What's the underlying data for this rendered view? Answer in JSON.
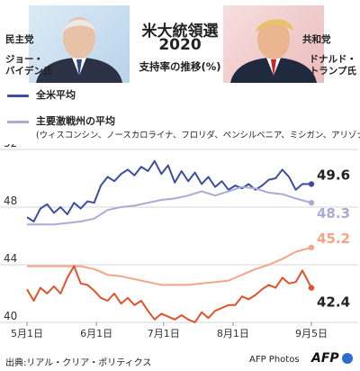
{
  "header": {
    "left_party": "民主党",
    "left_candidate": "ジョー・\nバイデン氏",
    "right_party": "共和党",
    "right_candidate": "ドナルド・\nトランプ氏",
    "title_line1": "米大統領選",
    "title_line2": "2020",
    "subtitle": "支持率の推移(%)"
  },
  "legend": {
    "national_label": "全米平均",
    "swing_label": "主要激戦州の平均",
    "swing_sub": "(ウィスコンシン、ノースカロライナ、フロリダ、ペンシルベニア、ミシガン、アリゾナ)"
  },
  "footer": {
    "source": "出典:リアル・クリア・ポリティクス",
    "credit": "AFP Photos",
    "logo": "AFP"
  },
  "colors": {
    "biden_national": "#3d4f9c",
    "biden_swing": "#a9abd6",
    "trump_national": "#e0522b",
    "trump_swing": "#f4a586",
    "grid": "#d6d6d6"
  },
  "chart_data": {
    "type": "line",
    "x_ticks": [
      "5月1日",
      "6月1日",
      "7月1日",
      "8月1日",
      "9月5日"
    ],
    "y_ticks": [
      "40",
      "44",
      "48",
      "52"
    ],
    "ylim": [
      40,
      52
    ],
    "grid": true,
    "end_labels": {
      "biden_national": "49.6",
      "biden_swing": "48.3",
      "trump_swing": "45.2",
      "trump_national": "42.4"
    },
    "series": [
      {
        "key": "biden_national",
        "name": "全米平均",
        "x": [
          "5月1日",
          "5月4日",
          "5月7日",
          "5月10日",
          "5月13日",
          "5月16日",
          "5月19日",
          "5月22日",
          "5月25日",
          "5月28日",
          "5月31日",
          "6月3日",
          "6月6日",
          "6月9日",
          "6月12日",
          "6月15日",
          "6月18日",
          "6月21日",
          "6月24日",
          "6月27日",
          "6月30日",
          "7月3日",
          "7月6日",
          "7月9日",
          "7月12日",
          "7月15日",
          "7月18日",
          "7月21日",
          "7月24日",
          "7月27日",
          "7月30日",
          "8月2日",
          "8月5日",
          "8月8日",
          "8月11日",
          "8月14日",
          "8月17日",
          "8月20日",
          "8月23日",
          "8月26日",
          "8月29日",
          "9月1日",
          "9月5日"
        ],
        "values": [
          47.3,
          47.0,
          47.9,
          48.2,
          47.6,
          48.0,
          47.5,
          48.3,
          47.9,
          48.4,
          48.3,
          49.5,
          50.1,
          49.8,
          50.3,
          50.6,
          50.2,
          50.8,
          50.5,
          51.2,
          50.3,
          50.9,
          49.7,
          50.5,
          49.8,
          50.4,
          49.6,
          50.1,
          49.4,
          49.8,
          49.2,
          49.5,
          49.3,
          49.6,
          49.2,
          49.5,
          49.9,
          50.0,
          50.6,
          50.1,
          49.2,
          49.6,
          49.6
        ]
      },
      {
        "key": "biden_swing",
        "name": "主要激戦州の平均",
        "x": [
          "5月1日",
          "5月7日",
          "5月13日",
          "5月19日",
          "5月25日",
          "5月31日",
          "6月6日",
          "6月12日",
          "6月18日",
          "6月24日",
          "6月30日",
          "7月6日",
          "7月12日",
          "7月18日",
          "7月24日",
          "7月30日",
          "8月5日",
          "8月11日",
          "8月17日",
          "8月23日",
          "8月29日",
          "9月5日"
        ],
        "values": [
          46.8,
          46.8,
          46.8,
          46.9,
          47.0,
          47.2,
          47.8,
          48.0,
          48.1,
          48.3,
          48.5,
          48.6,
          48.8,
          49.1,
          48.8,
          49.1,
          49.4,
          49.3,
          49.0,
          48.9,
          48.6,
          48.3
        ]
      },
      {
        "key": "trump_swing",
        "name": "主要激戦州の平均",
        "x": [
          "5月1日",
          "5月7日",
          "5月13日",
          "5月19日",
          "5月25日",
          "5月31日",
          "6月6日",
          "6月12日",
          "6月18日",
          "6月24日",
          "6月30日",
          "7月6日",
          "7月12日",
          "7月18日",
          "7月24日",
          "7月30日",
          "8月5日",
          "8月11日",
          "8月17日",
          "8月23日",
          "8月29日",
          "9月5日"
        ],
        "values": [
          43.9,
          43.9,
          43.9,
          43.9,
          43.9,
          43.7,
          43.3,
          43.2,
          43.0,
          42.8,
          42.6,
          42.6,
          42.6,
          42.7,
          42.8,
          42.9,
          43.3,
          43.7,
          44.0,
          44.4,
          44.9,
          45.2
        ]
      },
      {
        "key": "trump_national",
        "name": "全米平均",
        "x": [
          "5月1日",
          "5月4日",
          "5月7日",
          "5月10日",
          "5月13日",
          "5月16日",
          "5月19日",
          "5月22日",
          "5月25日",
          "5月28日",
          "5月31日",
          "6月3日",
          "6月6日",
          "6月9日",
          "6月12日",
          "6月15日",
          "6月18日",
          "6月21日",
          "6月24日",
          "6月27日",
          "6月30日",
          "7月3日",
          "7月6日",
          "7月9日",
          "7月12日",
          "7月15日",
          "7月18日",
          "7月21日",
          "7月24日",
          "7月27日",
          "7月30日",
          "8月2日",
          "8月5日",
          "8月8日",
          "8月11日",
          "8月14日",
          "8月17日",
          "8月20日",
          "8月23日",
          "8月26日",
          "8月29日",
          "9月1日",
          "9月5日"
        ],
        "values": [
          42.3,
          41.5,
          42.4,
          42.0,
          42.5,
          42.0,
          43.1,
          43.9,
          42.7,
          42.6,
          42.2,
          41.7,
          41.5,
          42.0,
          41.3,
          41.7,
          41.2,
          41.5,
          40.8,
          40.2,
          40.6,
          40.4,
          40.2,
          40.5,
          40.2,
          40.0,
          40.7,
          40.3,
          40.8,
          41.0,
          41.2,
          41.2,
          41.8,
          41.6,
          41.9,
          42.3,
          42.6,
          42.4,
          43.1,
          42.7,
          42.8,
          43.6,
          42.4
        ]
      }
    ]
  }
}
